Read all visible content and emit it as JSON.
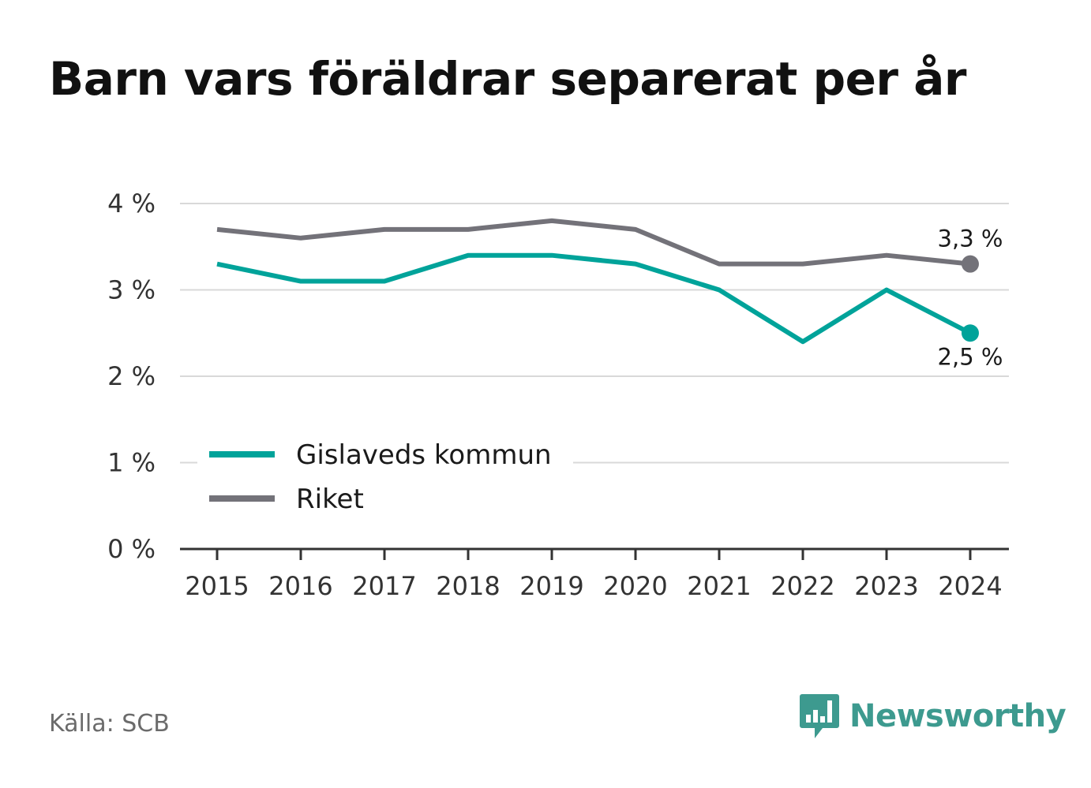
{
  "title": "Barn vars föräldrar separerat per år",
  "source": "Källa: SCB",
  "brand": {
    "name": "Newsworthy",
    "icon": "newsworthy-bar-chart-icon",
    "color": "#3d9a8f"
  },
  "chart_data": {
    "type": "line",
    "x": [
      2015,
      2016,
      2017,
      2018,
      2019,
      2020,
      2021,
      2022,
      2023,
      2024
    ],
    "ylim": [
      0,
      4
    ],
    "yticks": [
      0,
      1,
      2,
      3,
      4
    ],
    "ytick_labels": [
      "0 %",
      "1 %",
      "2 %",
      "3 %",
      "4 %"
    ],
    "grid": true,
    "legend_position": "lower-left",
    "series": [
      {
        "name": "Gislaveds kommun",
        "color": "#00a39a",
        "values": [
          3.3,
          3.1,
          3.1,
          3.4,
          3.4,
          3.3,
          3.0,
          2.4,
          3.0,
          2.5
        ],
        "end_label": "2,5 %"
      },
      {
        "name": "Riket",
        "color": "#737279",
        "values": [
          3.7,
          3.6,
          3.7,
          3.7,
          3.8,
          3.7,
          3.3,
          3.3,
          3.4,
          3.3
        ],
        "end_label": "3,3 %"
      }
    ]
  }
}
